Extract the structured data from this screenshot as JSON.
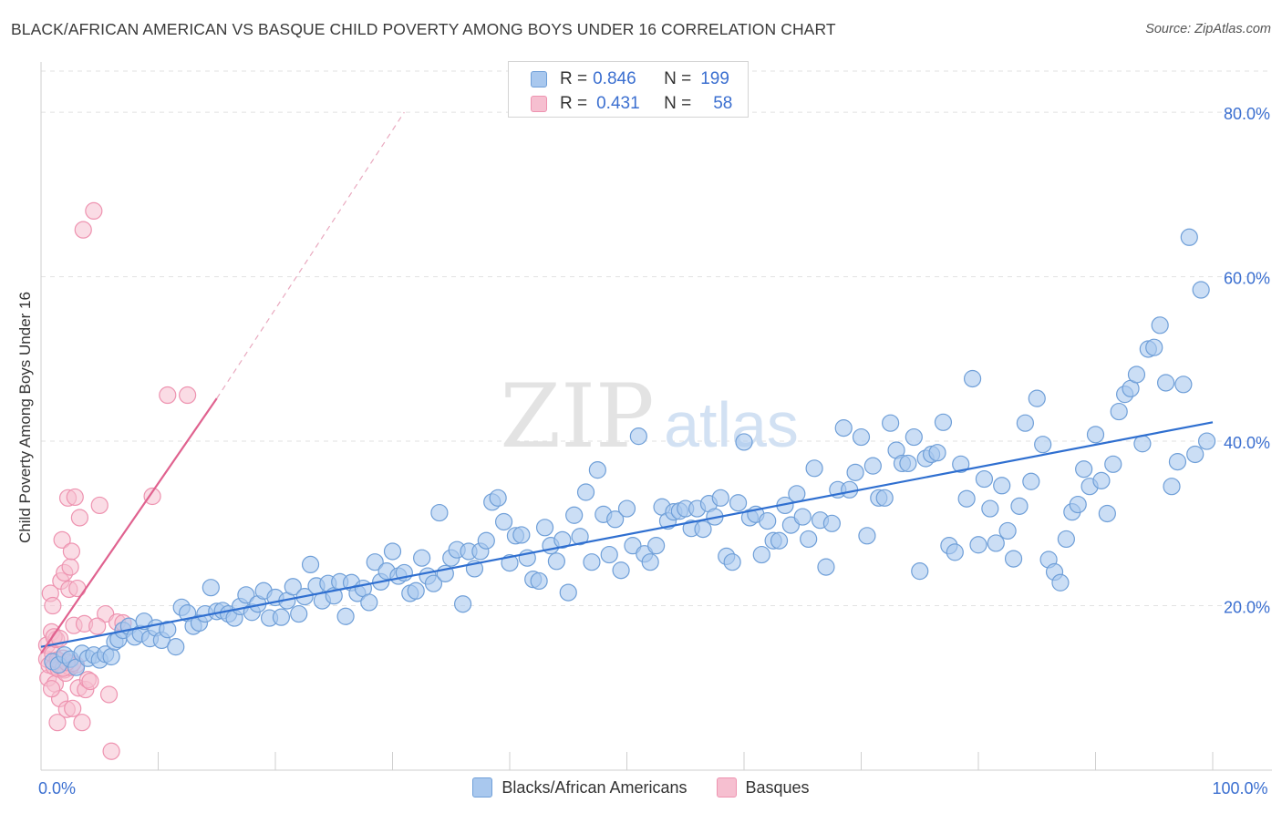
{
  "title": "BLACK/AFRICAN AMERICAN VS BASQUE CHILD POVERTY AMONG BOYS UNDER 16 CORRELATION CHART",
  "source": "Source: ZipAtlas.com",
  "watermark": {
    "zip": "ZIP",
    "atlas": "atlas"
  },
  "legend_top": {
    "rows": [
      {
        "r_label": "R =",
        "r_value": "0.846",
        "n_label": "N =",
        "n_value": "199"
      },
      {
        "r_label": "R =",
        "r_value": "0.431",
        "n_label": "N =",
        "n_value": "58"
      }
    ]
  },
  "colors": {
    "blue_fill": "#a9c8ee",
    "blue_stroke": "#6f9fd8",
    "blue_line": "#2f6fd0",
    "pink_fill": "#f6bfd0",
    "pink_stroke": "#ee93b0",
    "pink_line": "#e0628f",
    "tick_label": "#3b6fd0"
  },
  "chart_data": {
    "type": "scatter",
    "title": "BLACK/AFRICAN AMERICAN VS BASQUE CHILD POVERTY AMONG BOYS UNDER 16 CORRELATION CHART",
    "xlabel": "",
    "ylabel": "Child Poverty Among Boys Under 16",
    "xlim": [
      0,
      100
    ],
    "ylim": [
      0,
      85
    ],
    "x_tick_labels": [
      {
        "value": 0,
        "label": "0.0%"
      },
      {
        "value": 100,
        "label": "100.0%"
      }
    ],
    "y_tick_labels": [
      {
        "value": 20,
        "label": "20.0%"
      },
      {
        "value": 40,
        "label": "40.0%"
      },
      {
        "value": 60,
        "label": "60.0%"
      },
      {
        "value": 80,
        "label": "80.0%"
      }
    ],
    "grid": true,
    "legend_position": "top-center",
    "series": [
      {
        "name": "Blacks/African Americans",
        "trend": {
          "x": [
            0,
            100
          ],
          "y": [
            15.0,
            42.3
          ]
        },
        "points": [
          [
            1.0,
            13.2
          ],
          [
            1.5,
            12.8
          ],
          [
            2.0,
            14.0
          ],
          [
            2.5,
            13.5
          ],
          [
            3.0,
            12.5
          ],
          [
            3.5,
            14.2
          ],
          [
            4.0,
            13.6
          ],
          [
            4.5,
            14.0
          ],
          [
            5.0,
            13.4
          ],
          [
            5.5,
            14.1
          ],
          [
            6.0,
            13.8
          ],
          [
            6.3,
            15.6
          ],
          [
            6.6,
            15.9
          ],
          [
            7.0,
            17.0
          ],
          [
            7.5,
            17.5
          ],
          [
            8.0,
            16.2
          ],
          [
            8.5,
            16.6
          ],
          [
            8.8,
            18.1
          ],
          [
            9.3,
            16.0
          ],
          [
            9.8,
            17.3
          ],
          [
            10.3,
            15.8
          ],
          [
            10.8,
            17.1
          ],
          [
            11.5,
            15.0
          ],
          [
            12.0,
            19.8
          ],
          [
            12.5,
            19.1
          ],
          [
            13.0,
            17.5
          ],
          [
            13.5,
            17.9
          ],
          [
            14.0,
            19.0
          ],
          [
            14.5,
            22.2
          ],
          [
            15.0,
            19.3
          ],
          [
            15.5,
            19.4
          ],
          [
            16.0,
            19.0
          ],
          [
            16.5,
            18.5
          ],
          [
            17.0,
            19.9
          ],
          [
            17.5,
            21.3
          ],
          [
            18.0,
            19.2
          ],
          [
            18.5,
            20.2
          ],
          [
            19.0,
            21.8
          ],
          [
            19.5,
            18.5
          ],
          [
            20.0,
            21.0
          ],
          [
            20.5,
            18.6
          ],
          [
            21.0,
            20.6
          ],
          [
            21.5,
            22.3
          ],
          [
            22.0,
            19.0
          ],
          [
            22.5,
            21.1
          ],
          [
            23.0,
            25.0
          ],
          [
            23.5,
            22.4
          ],
          [
            24.0,
            20.6
          ],
          [
            24.5,
            22.7
          ],
          [
            25.0,
            21.2
          ],
          [
            25.5,
            22.9
          ],
          [
            26.0,
            18.7
          ],
          [
            26.5,
            22.8
          ],
          [
            27.0,
            21.5
          ],
          [
            27.5,
            22.1
          ],
          [
            28.0,
            20.4
          ],
          [
            28.5,
            25.3
          ],
          [
            29.0,
            22.9
          ],
          [
            29.5,
            24.2
          ],
          [
            30.0,
            26.6
          ],
          [
            30.5,
            23.6
          ],
          [
            31.0,
            24.0
          ],
          [
            31.5,
            21.5
          ],
          [
            32.0,
            21.8
          ],
          [
            32.5,
            25.8
          ],
          [
            33.0,
            23.6
          ],
          [
            33.5,
            22.7
          ],
          [
            34.0,
            31.3
          ],
          [
            34.5,
            23.9
          ],
          [
            35.0,
            25.8
          ],
          [
            35.5,
            26.8
          ],
          [
            36.0,
            20.2
          ],
          [
            36.5,
            26.6
          ],
          [
            37.0,
            24.5
          ],
          [
            37.5,
            26.6
          ],
          [
            38.0,
            27.9
          ],
          [
            38.5,
            32.6
          ],
          [
            39.0,
            33.1
          ],
          [
            39.5,
            30.2
          ],
          [
            40.0,
            25.2
          ],
          [
            40.5,
            28.5
          ],
          [
            41.0,
            28.6
          ],
          [
            41.5,
            25.8
          ],
          [
            42.0,
            23.2
          ],
          [
            42.5,
            23.0
          ],
          [
            43.0,
            29.5
          ],
          [
            43.5,
            27.3
          ],
          [
            44.0,
            25.4
          ],
          [
            44.5,
            28.0
          ],
          [
            45.0,
            21.6
          ],
          [
            45.5,
            31.0
          ],
          [
            46.0,
            28.4
          ],
          [
            46.5,
            33.8
          ],
          [
            47.0,
            25.3
          ],
          [
            47.5,
            36.5
          ],
          [
            48.0,
            31.1
          ],
          [
            48.5,
            26.2
          ],
          [
            49.0,
            30.5
          ],
          [
            49.5,
            24.3
          ],
          [
            50.0,
            31.8
          ],
          [
            50.5,
            27.3
          ],
          [
            51.0,
            40.6
          ],
          [
            51.5,
            26.3
          ],
          [
            52.0,
            25.3
          ],
          [
            52.5,
            27.3
          ],
          [
            53.0,
            32.0
          ],
          [
            53.5,
            30.3
          ],
          [
            54.0,
            31.4
          ],
          [
            54.5,
            31.5
          ],
          [
            55.0,
            31.8
          ],
          [
            55.5,
            29.4
          ],
          [
            56.0,
            31.8
          ],
          [
            56.5,
            29.3
          ],
          [
            57.0,
            32.4
          ],
          [
            57.5,
            30.8
          ],
          [
            58.0,
            33.1
          ],
          [
            58.5,
            26.0
          ],
          [
            59.0,
            25.3
          ],
          [
            59.5,
            32.5
          ],
          [
            60.0,
            39.9
          ],
          [
            60.5,
            30.7
          ],
          [
            61.0,
            31.1
          ],
          [
            61.5,
            26.2
          ],
          [
            62.0,
            30.3
          ],
          [
            62.5,
            27.9
          ],
          [
            63.0,
            27.9
          ],
          [
            63.5,
            32.2
          ],
          [
            64.0,
            29.8
          ],
          [
            64.5,
            33.6
          ],
          [
            65.0,
            30.8
          ],
          [
            65.5,
            28.1
          ],
          [
            66.0,
            36.7
          ],
          [
            66.5,
            30.4
          ],
          [
            67.0,
            24.7
          ],
          [
            67.5,
            30.0
          ],
          [
            68.0,
            34.1
          ],
          [
            68.5,
            41.6
          ],
          [
            69.0,
            34.1
          ],
          [
            69.5,
            36.2
          ],
          [
            70.0,
            40.5
          ],
          [
            70.5,
            28.5
          ],
          [
            71.0,
            37.0
          ],
          [
            71.5,
            33.1
          ],
          [
            72.0,
            33.1
          ],
          [
            72.5,
            42.2
          ],
          [
            73.0,
            38.9
          ],
          [
            73.5,
            37.3
          ],
          [
            74.0,
            37.3
          ],
          [
            74.5,
            40.5
          ],
          [
            75.0,
            24.2
          ],
          [
            75.5,
            37.9
          ],
          [
            76.0,
            38.4
          ],
          [
            76.5,
            38.6
          ],
          [
            77.0,
            42.3
          ],
          [
            77.5,
            27.3
          ],
          [
            78.0,
            26.5
          ],
          [
            78.5,
            37.2
          ],
          [
            79.0,
            33.0
          ],
          [
            79.5,
            47.6
          ],
          [
            80.0,
            27.4
          ],
          [
            80.5,
            35.4
          ],
          [
            81.0,
            31.8
          ],
          [
            81.5,
            27.6
          ],
          [
            82.0,
            34.6
          ],
          [
            82.5,
            29.1
          ],
          [
            83.0,
            25.7
          ],
          [
            83.5,
            32.1
          ],
          [
            84.0,
            42.2
          ],
          [
            84.5,
            35.1
          ],
          [
            85.0,
            45.2
          ],
          [
            85.5,
            39.6
          ],
          [
            86.0,
            25.6
          ],
          [
            86.5,
            24.1
          ],
          [
            87.0,
            22.8
          ],
          [
            87.5,
            28.1
          ],
          [
            88.0,
            31.4
          ],
          [
            88.5,
            32.3
          ],
          [
            89.0,
            36.6
          ],
          [
            89.5,
            34.5
          ],
          [
            90.0,
            40.8
          ],
          [
            90.5,
            35.2
          ],
          [
            91.0,
            31.2
          ],
          [
            91.5,
            37.2
          ],
          [
            92.0,
            43.6
          ],
          [
            92.5,
            45.7
          ],
          [
            93.0,
            46.4
          ],
          [
            93.5,
            48.1
          ],
          [
            94.0,
            39.7
          ],
          [
            94.5,
            51.2
          ],
          [
            95.0,
            51.4
          ],
          [
            95.5,
            54.1
          ],
          [
            96.0,
            47.1
          ],
          [
            96.5,
            34.5
          ],
          [
            97.0,
            37.5
          ],
          [
            97.5,
            46.9
          ],
          [
            98.0,
            64.8
          ],
          [
            98.5,
            38.4
          ],
          [
            99.0,
            58.4
          ],
          [
            99.5,
            40.0
          ]
        ]
      },
      {
        "name": "Basques",
        "trend": {
          "x": [
            0,
            15
          ],
          "y": [
            14.2,
            45.2
          ]
        },
        "trend_extension": {
          "x": [
            15,
            31
          ],
          "y": [
            45.2,
            80.0
          ]
        },
        "points": [
          [
            0.5,
            13.5
          ],
          [
            0.5,
            15.2
          ],
          [
            0.6,
            11.2
          ],
          [
            0.7,
            12.8
          ],
          [
            0.8,
            21.5
          ],
          [
            0.9,
            16.8
          ],
          [
            1.0,
            20.0
          ],
          [
            1.0,
            14.1
          ],
          [
            1.1,
            12.6
          ],
          [
            1.2,
            10.5
          ],
          [
            1.3,
            15.9
          ],
          [
            1.4,
            5.8
          ],
          [
            1.5,
            13.2
          ],
          [
            1.5,
            12.3
          ],
          [
            1.6,
            8.7
          ],
          [
            1.7,
            23.0
          ],
          [
            1.8,
            28.0
          ],
          [
            1.9,
            13.6
          ],
          [
            2.0,
            24.0
          ],
          [
            2.0,
            12.2
          ],
          [
            2.1,
            11.8
          ],
          [
            2.2,
            7.4
          ],
          [
            2.3,
            33.1
          ],
          [
            2.4,
            22.0
          ],
          [
            2.5,
            24.7
          ],
          [
            2.5,
            12.5
          ],
          [
            2.6,
            26.6
          ],
          [
            2.7,
            7.5
          ],
          [
            2.8,
            17.6
          ],
          [
            2.9,
            33.2
          ],
          [
            3.0,
            12.8
          ],
          [
            3.1,
            22.1
          ],
          [
            3.2,
            10.0
          ],
          [
            3.3,
            30.7
          ],
          [
            3.5,
            5.8
          ],
          [
            3.6,
            65.7
          ],
          [
            3.8,
            9.8
          ],
          [
            4.0,
            11.0
          ],
          [
            4.2,
            10.8
          ],
          [
            4.5,
            68.0
          ],
          [
            5.0,
            32.2
          ],
          [
            5.5,
            19.0
          ],
          [
            5.8,
            9.2
          ],
          [
            6.0,
            2.3
          ],
          [
            6.5,
            18.0
          ],
          [
            7.0,
            17.9
          ],
          [
            9.5,
            33.3
          ],
          [
            10.8,
            45.6
          ],
          [
            12.5,
            45.6
          ],
          [
            1.4,
            13.4
          ],
          [
            1.9,
            12.4
          ],
          [
            2.7,
            13.0
          ],
          [
            0.9,
            9.9
          ],
          [
            1.1,
            16.2
          ],
          [
            1.6,
            16.0
          ],
          [
            2.2,
            13.1
          ],
          [
            3.7,
            17.8
          ],
          [
            4.8,
            17.5
          ]
        ]
      }
    ]
  },
  "legend_bottom": [
    {
      "label": "Blacks/African Americans"
    },
    {
      "label": "Basques"
    }
  ]
}
